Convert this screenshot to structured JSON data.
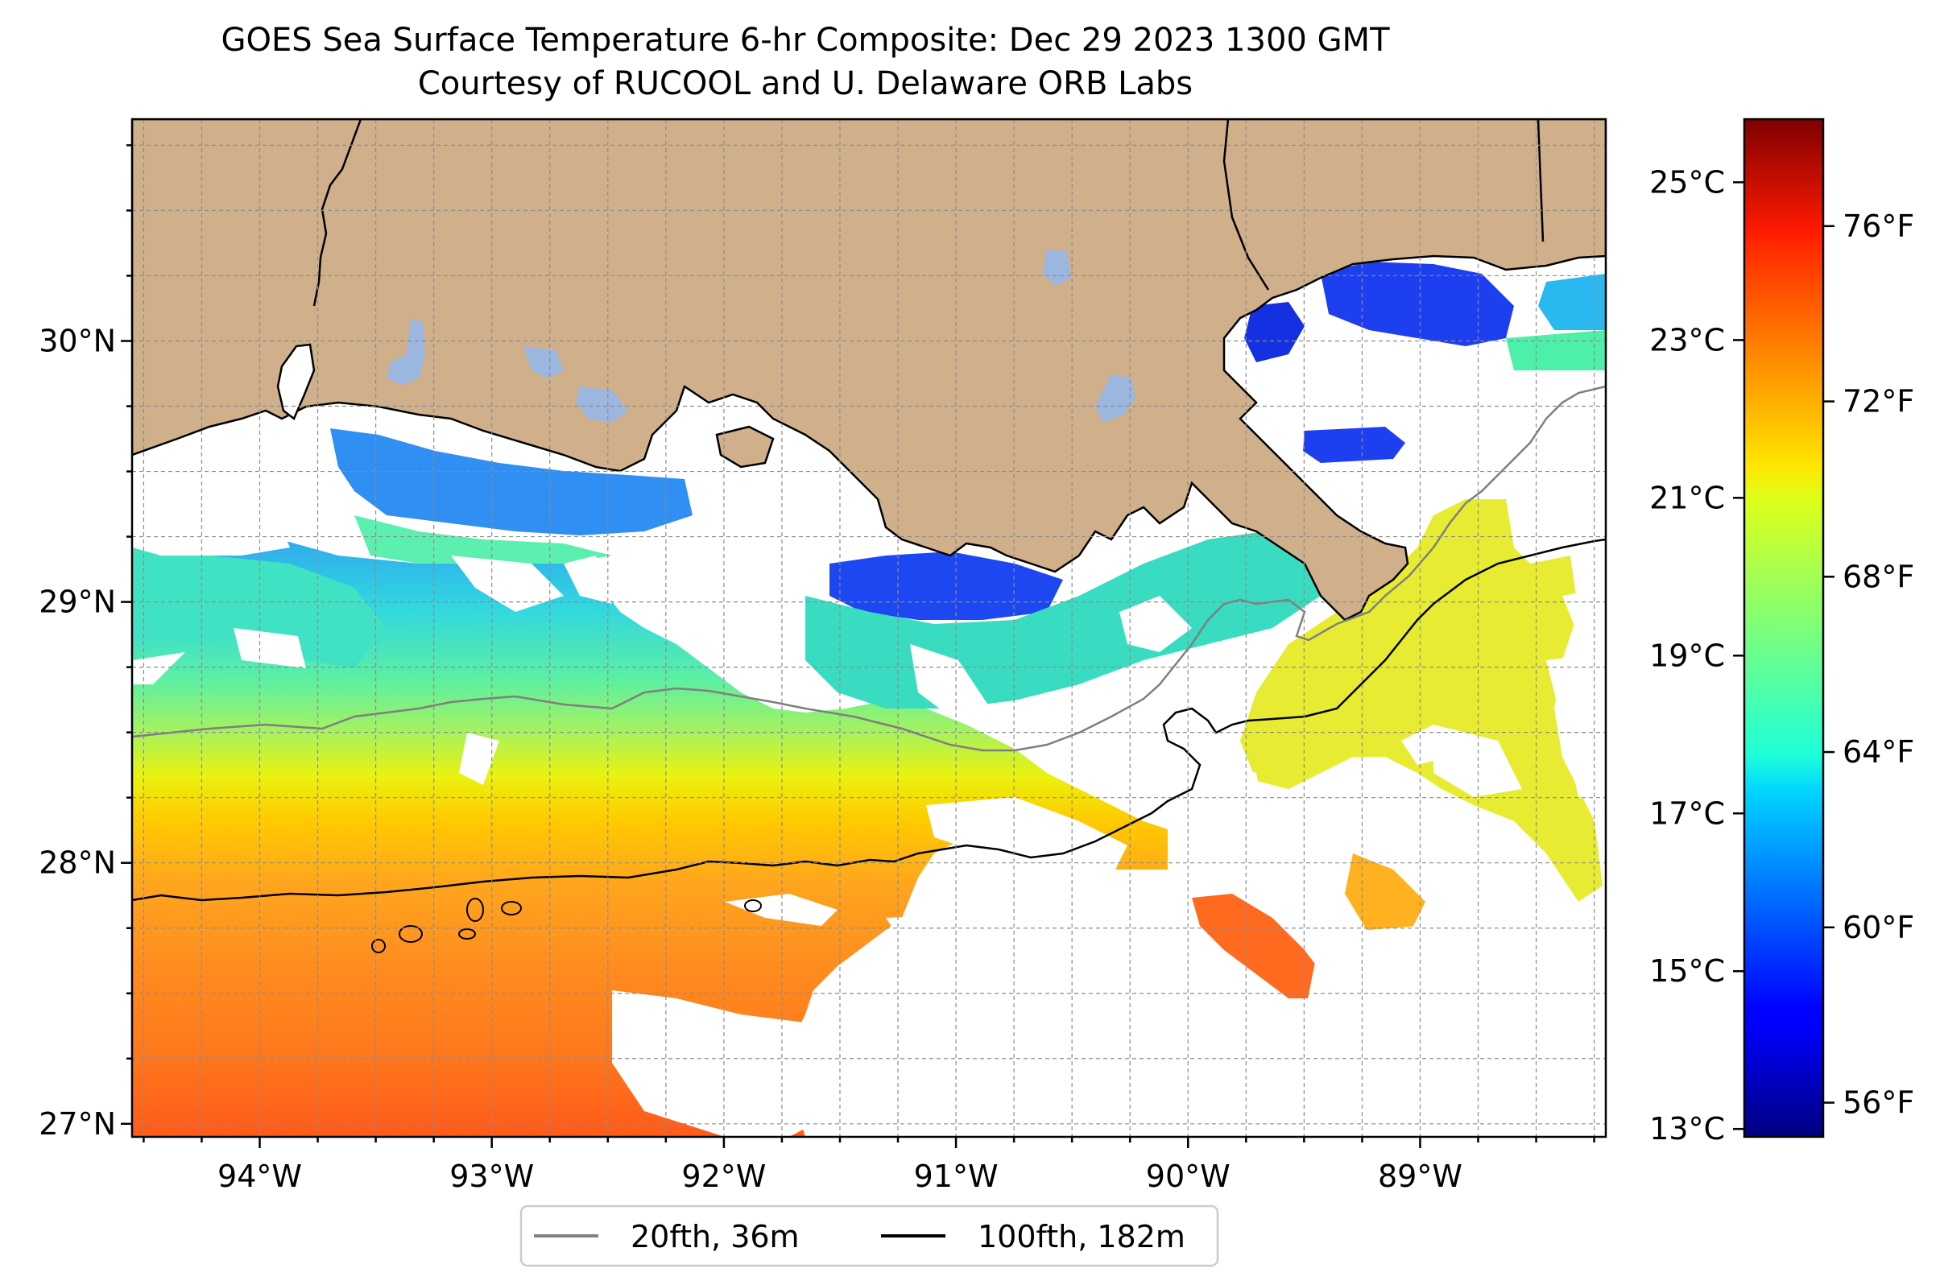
{
  "title": "GOES Sea Surface Temperature 6-hr Composite: Dec 29 2023 1300 GMT",
  "subtitle": "Courtesy of RUCOOL and U. Delaware ORB Labs",
  "map": {
    "lat_range": [
      26.95,
      30.85
    ],
    "lon_range": [
      -94.55,
      -88.2
    ],
    "lat_ticks": [
      {
        "value": 30,
        "label": "30°N"
      },
      {
        "value": 29,
        "label": "29°N"
      },
      {
        "value": 28,
        "label": "28°N"
      },
      {
        "value": 27,
        "label": "27°N"
      }
    ],
    "lon_ticks": [
      {
        "value": -94,
        "label": "94°W"
      },
      {
        "value": -93,
        "label": "93°W"
      },
      {
        "value": -92,
        "label": "92°W"
      },
      {
        "value": -91,
        "label": "91°W"
      },
      {
        "value": -90,
        "label": "90°W"
      },
      {
        "value": -89,
        "label": "89°W"
      }
    ],
    "gridlines": "dashed",
    "colors": {
      "land": "#cfb08a",
      "inland_water": "#9bb7e0",
      "coastline": "#000000",
      "isobath_20fth": "#808080",
      "isobath_100fth": "#000000",
      "no_data": "#ffffff"
    }
  },
  "legend": {
    "position": "bottom-center",
    "items": [
      {
        "label": "20fth, 36m",
        "color": "#808080"
      },
      {
        "label": "100fth, 182m",
        "color": "#000000"
      }
    ]
  },
  "colorbar": {
    "colormap": "jet",
    "celsius_range": [
      12.9,
      25.8
    ],
    "celsius_ticks": [
      {
        "value": 13,
        "label": "13°C"
      },
      {
        "value": 15,
        "label": "15°C"
      },
      {
        "value": 17,
        "label": "17°C"
      },
      {
        "value": 19,
        "label": "19°C"
      },
      {
        "value": 21,
        "label": "21°C"
      },
      {
        "value": 23,
        "label": "23°C"
      },
      {
        "value": 25,
        "label": "25°C"
      }
    ],
    "fahrenheit_ticks": [
      {
        "value": 56,
        "label": "56°F"
      },
      {
        "value": 60,
        "label": "60°F"
      },
      {
        "value": 64,
        "label": "64°F"
      },
      {
        "value": 68,
        "label": "68°F"
      },
      {
        "value": 72,
        "label": "72°F"
      },
      {
        "value": 76,
        "label": "76°F"
      }
    ]
  }
}
